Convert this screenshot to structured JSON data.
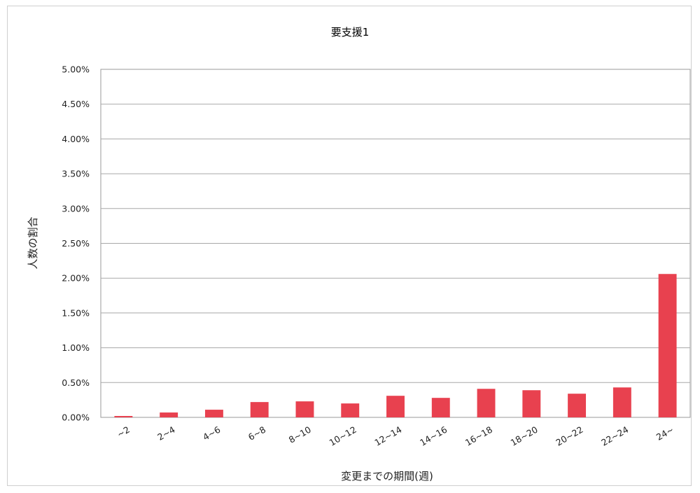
{
  "chart_data": {
    "type": "bar",
    "title": "要支援1",
    "xlabel": "変更までの期間(週)",
    "ylabel": "人数の割合",
    "categories": [
      "~2",
      "2~4",
      "4~6",
      "6~8",
      "8~10",
      "10~12",
      "12~14",
      "14~16",
      "16~18",
      "18~20",
      "20~22",
      "22~24",
      "24~"
    ],
    "values": [
      0.02,
      0.07,
      0.11,
      0.22,
      0.23,
      0.2,
      0.31,
      0.28,
      0.41,
      0.39,
      0.34,
      0.43,
      2.06
    ],
    "value_unit": "%",
    "ylim": [
      0,
      5.0
    ],
    "yticks": [
      "0.00%",
      "0.50%",
      "1.00%",
      "1.50%",
      "2.00%",
      "2.50%",
      "3.00%",
      "3.50%",
      "4.00%",
      "4.50%",
      "5.00%"
    ],
    "grid": true,
    "legend": "none",
    "bar_color": "#e8414f"
  }
}
